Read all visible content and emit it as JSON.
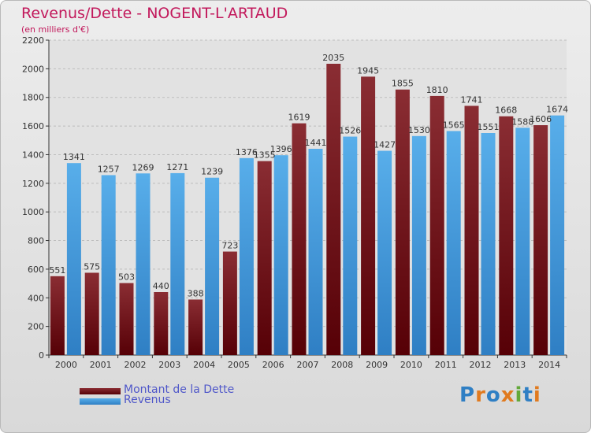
{
  "title": "Revenus/Dette - NOGENT-L'ARTAUD",
  "subtitle": "(en milliers d'€)",
  "colors": {
    "dette": "#6e0f16",
    "revenus": "#3d93d8",
    "title": "#c2185b",
    "legend_text": "#4f57c9"
  },
  "legend": {
    "items": [
      {
        "label": "Montant de la Dette",
        "color": "#6e0f16"
      },
      {
        "label": "Revenus",
        "color": "#3d93d8"
      }
    ]
  },
  "logo": {
    "text": "Proxiti"
  },
  "chart_data": {
    "type": "bar",
    "title": "Revenus/Dette - NOGENT-L'ARTAUD",
    "subtitle": "(en milliers d'€)",
    "xlabel": "",
    "ylabel": "",
    "ylim": [
      0,
      2200
    ],
    "yticks": [
      0,
      200,
      400,
      600,
      800,
      1000,
      1200,
      1400,
      1600,
      1800,
      2000,
      2200
    ],
    "grid": true,
    "legend_position": "bottom-left",
    "categories": [
      "2000",
      "2001",
      "2002",
      "2003",
      "2004",
      "2005",
      "2006",
      "2007",
      "2008",
      "2009",
      "2010",
      "2011",
      "2012",
      "2013",
      "2014"
    ],
    "series": [
      {
        "name": "Montant de la Dette",
        "values": [
          551,
          575,
          503,
          440,
          388,
          723,
          1355,
          1619,
          2035,
          1945,
          1855,
          1810,
          1741,
          1668,
          1606
        ],
        "labels": [
          "551",
          "575",
          "503",
          "440",
          "388",
          "723",
          "1355",
          "1619",
          "2035",
          "1945",
          "1855",
          "1810",
          "1741",
          "1668",
          "1606"
        ]
      },
      {
        "name": "Revenus",
        "values": [
          1341,
          1257,
          1269,
          1271,
          1239,
          1376,
          1396,
          1441,
          1526,
          1427,
          1530,
          1565,
          1551,
          1588,
          1674
        ],
        "labels": [
          "1341",
          "1257",
          "1269",
          "1271",
          "1239",
          "1376",
          "1396",
          "1441",
          "1526",
          "1427",
          "1530",
          "1565",
          "1551",
          "1588",
          "1674"
        ]
      }
    ]
  }
}
